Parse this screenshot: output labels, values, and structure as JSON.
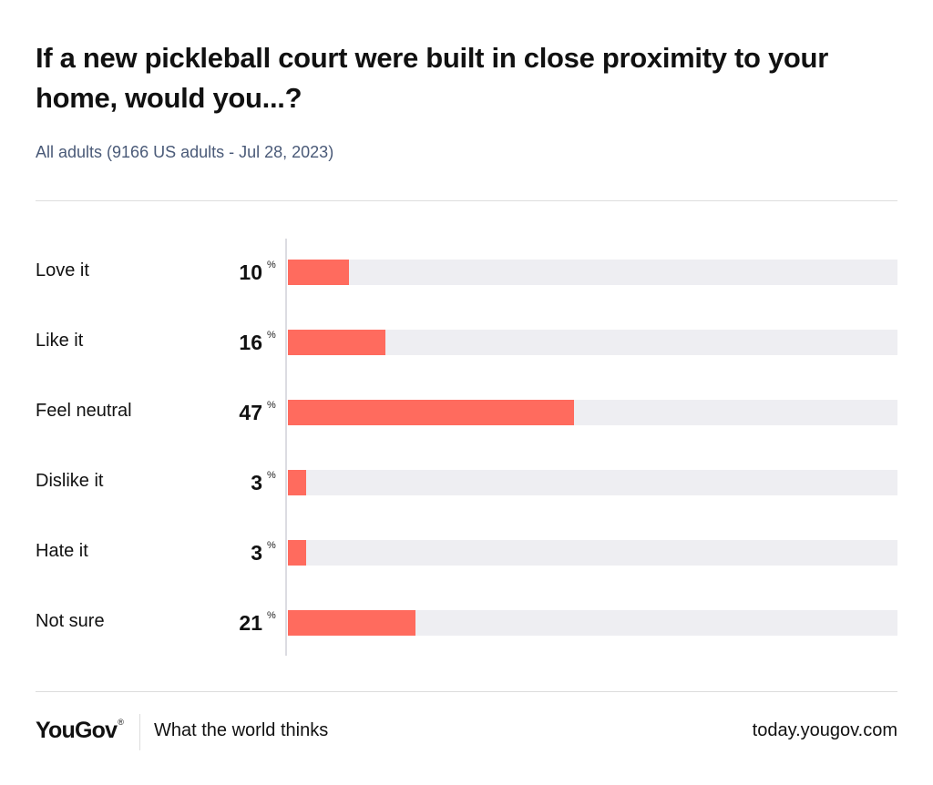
{
  "header": {
    "title": "If a new pickleball court were built in close proximity to your home, would you...?",
    "subtitle": "All adults (9166 US adults - Jul 28, 2023)"
  },
  "chart_data": {
    "type": "bar",
    "orientation": "horizontal",
    "title": "If a new pickleball court were built in close proximity to your home, would you...?",
    "subtitle": "All adults (9166 US adults - Jul 28, 2023)",
    "categories": [
      "Love it",
      "Like it",
      "Feel neutral",
      "Dislike it",
      "Hate it",
      "Not sure"
    ],
    "values": [
      10,
      16,
      47,
      3,
      3,
      21
    ],
    "unit": "%",
    "xlim": [
      0,
      100
    ],
    "grid": false,
    "legend": "none",
    "bar_color": "#ff6b5e",
    "track_color": "#eeeef2"
  },
  "footer": {
    "logo": "YouGov",
    "logo_mark": "®",
    "tagline": "What the world thinks",
    "url": "today.yougov.com"
  }
}
